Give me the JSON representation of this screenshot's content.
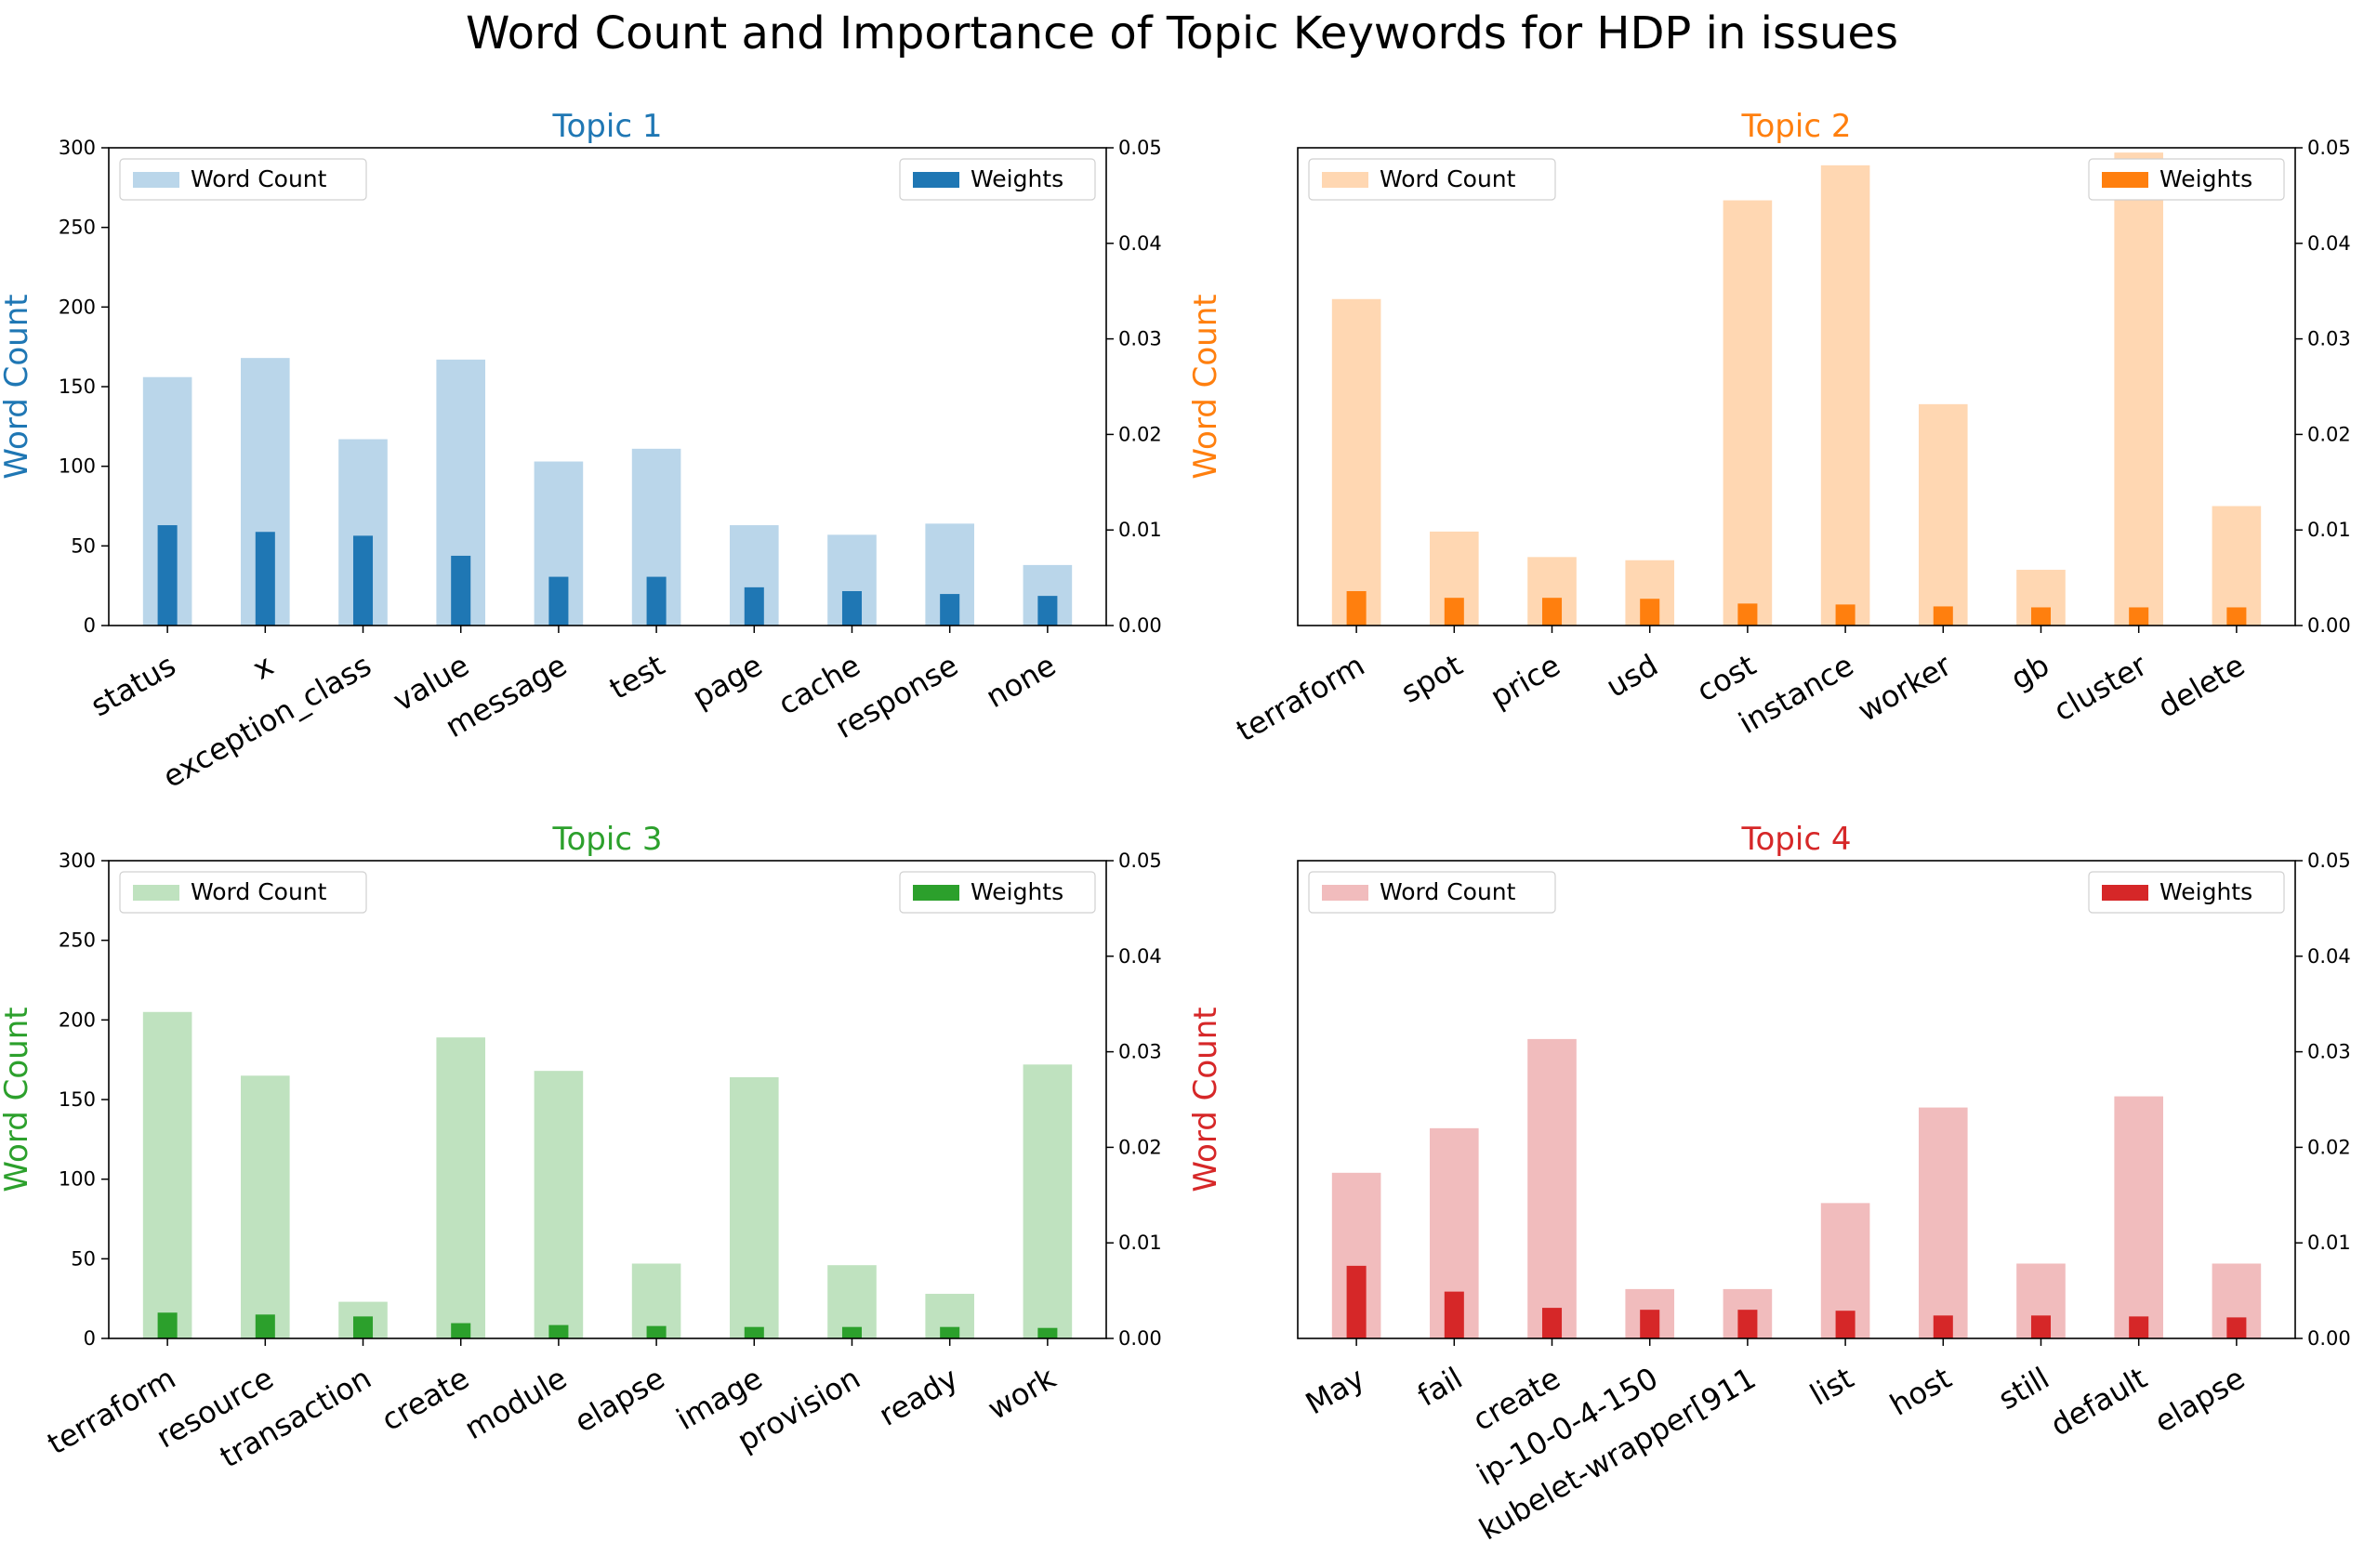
{
  "figure_title": "Word Count and Importance of Topic Keywords for HDP in issues",
  "chart_data": [
    {
      "type": "bar",
      "title": "Topic 1",
      "ylabel": "Word Count",
      "color": "#1f77b4",
      "light_color": "#bad6ea",
      "categories": [
        "status",
        "x",
        "exception_class",
        "value",
        "message",
        "test",
        "page",
        "cache",
        "response",
        "none"
      ],
      "series": [
        {
          "name": "Word Count",
          "axis": "left",
          "values": [
            156,
            168,
            117,
            167,
            103,
            111,
            63,
            57,
            64,
            38
          ]
        },
        {
          "name": "Weights",
          "axis": "right",
          "values": [
            0.0105,
            0.0098,
            0.0094,
            0.0073,
            0.0051,
            0.0051,
            0.004,
            0.0036,
            0.0033,
            0.0031
          ]
        }
      ],
      "ylim_left": [
        0,
        300
      ],
      "ylim_right": [
        0,
        0.05
      ],
      "left_ticks": [
        "0",
        "50",
        "100",
        "150",
        "200",
        "250",
        "300"
      ],
      "right_ticks": [
        "0.00",
        "0.01",
        "0.02",
        "0.03",
        "0.04",
        "0.05"
      ],
      "legend_left": "Word Count",
      "legend_right": "Weights"
    },
    {
      "type": "bar",
      "title": "Topic 2",
      "ylabel": "Word Count",
      "color": "#ff7f0e",
      "light_color": "#ffd7b2",
      "categories": [
        "terraform",
        "spot",
        "price",
        "usd",
        "cost",
        "instance",
        "worker",
        "gb",
        "cluster",
        "delete"
      ],
      "series": [
        {
          "name": "Word Count",
          "axis": "left",
          "values": [
            205,
            59,
            43,
            41,
            267,
            289,
            139,
            35,
            297,
            75
          ]
        },
        {
          "name": "Weights",
          "axis": "right",
          "values": [
            0.0036,
            0.0029,
            0.0029,
            0.0028,
            0.0023,
            0.0022,
            0.002,
            0.0019,
            0.0019,
            0.0019
          ]
        }
      ],
      "ylim_left": [
        0,
        300
      ],
      "ylim_right": [
        0,
        0.05
      ],
      "left_ticks": [],
      "right_ticks": [
        "0.00",
        "0.01",
        "0.02",
        "0.03",
        "0.04",
        "0.05"
      ],
      "legend_left": "Word Count",
      "legend_right": "Weights"
    },
    {
      "type": "bar",
      "title": "Topic 3",
      "ylabel": "Word Count",
      "color": "#2ca02c",
      "light_color": "#bfe2bf",
      "categories": [
        "terraform",
        "resource",
        "transaction",
        "create",
        "module",
        "elapse",
        "image",
        "provision",
        "ready",
        "work"
      ],
      "series": [
        {
          "name": "Word Count",
          "axis": "left",
          "values": [
            205,
            165,
            23,
            189,
            168,
            47,
            164,
            46,
            28,
            172
          ]
        },
        {
          "name": "Weights",
          "axis": "right",
          "values": [
            0.0027,
            0.0025,
            0.0023,
            0.0016,
            0.0014,
            0.0013,
            0.0012,
            0.0012,
            0.0012,
            0.0011
          ]
        }
      ],
      "ylim_left": [
        0,
        300
      ],
      "ylim_right": [
        0,
        0.05
      ],
      "left_ticks": [
        "0",
        "50",
        "100",
        "150",
        "200",
        "250",
        "300"
      ],
      "right_ticks": [
        "0.00",
        "0.01",
        "0.02",
        "0.03",
        "0.04",
        "0.05"
      ],
      "legend_left": "Word Count",
      "legend_right": "Weights"
    },
    {
      "type": "bar",
      "title": "Topic 4",
      "ylabel": "Word Count",
      "color": "#d62728",
      "light_color": "#f1bcbd",
      "categories": [
        "May",
        "fail",
        "create",
        "ip-10-0-4-150",
        "kubelet-wrapper[911",
        "list",
        "host",
        "still",
        "default",
        "elapse"
      ],
      "series": [
        {
          "name": "Word Count",
          "axis": "left",
          "values": [
            104,
            132,
            188,
            31,
            31,
            85,
            145,
            47,
            152,
            47
          ]
        },
        {
          "name": "Weights",
          "axis": "right",
          "values": [
            0.0076,
            0.0049,
            0.0032,
            0.003,
            0.003,
            0.0029,
            0.0024,
            0.0024,
            0.0023,
            0.0022
          ]
        }
      ],
      "ylim_left": [
        0,
        300
      ],
      "ylim_right": [
        0,
        0.05
      ],
      "left_ticks": [],
      "right_ticks": [
        "0.00",
        "0.01",
        "0.02",
        "0.03",
        "0.04",
        "0.05"
      ],
      "legend_left": "Word Count",
      "legend_right": "Weights"
    }
  ]
}
